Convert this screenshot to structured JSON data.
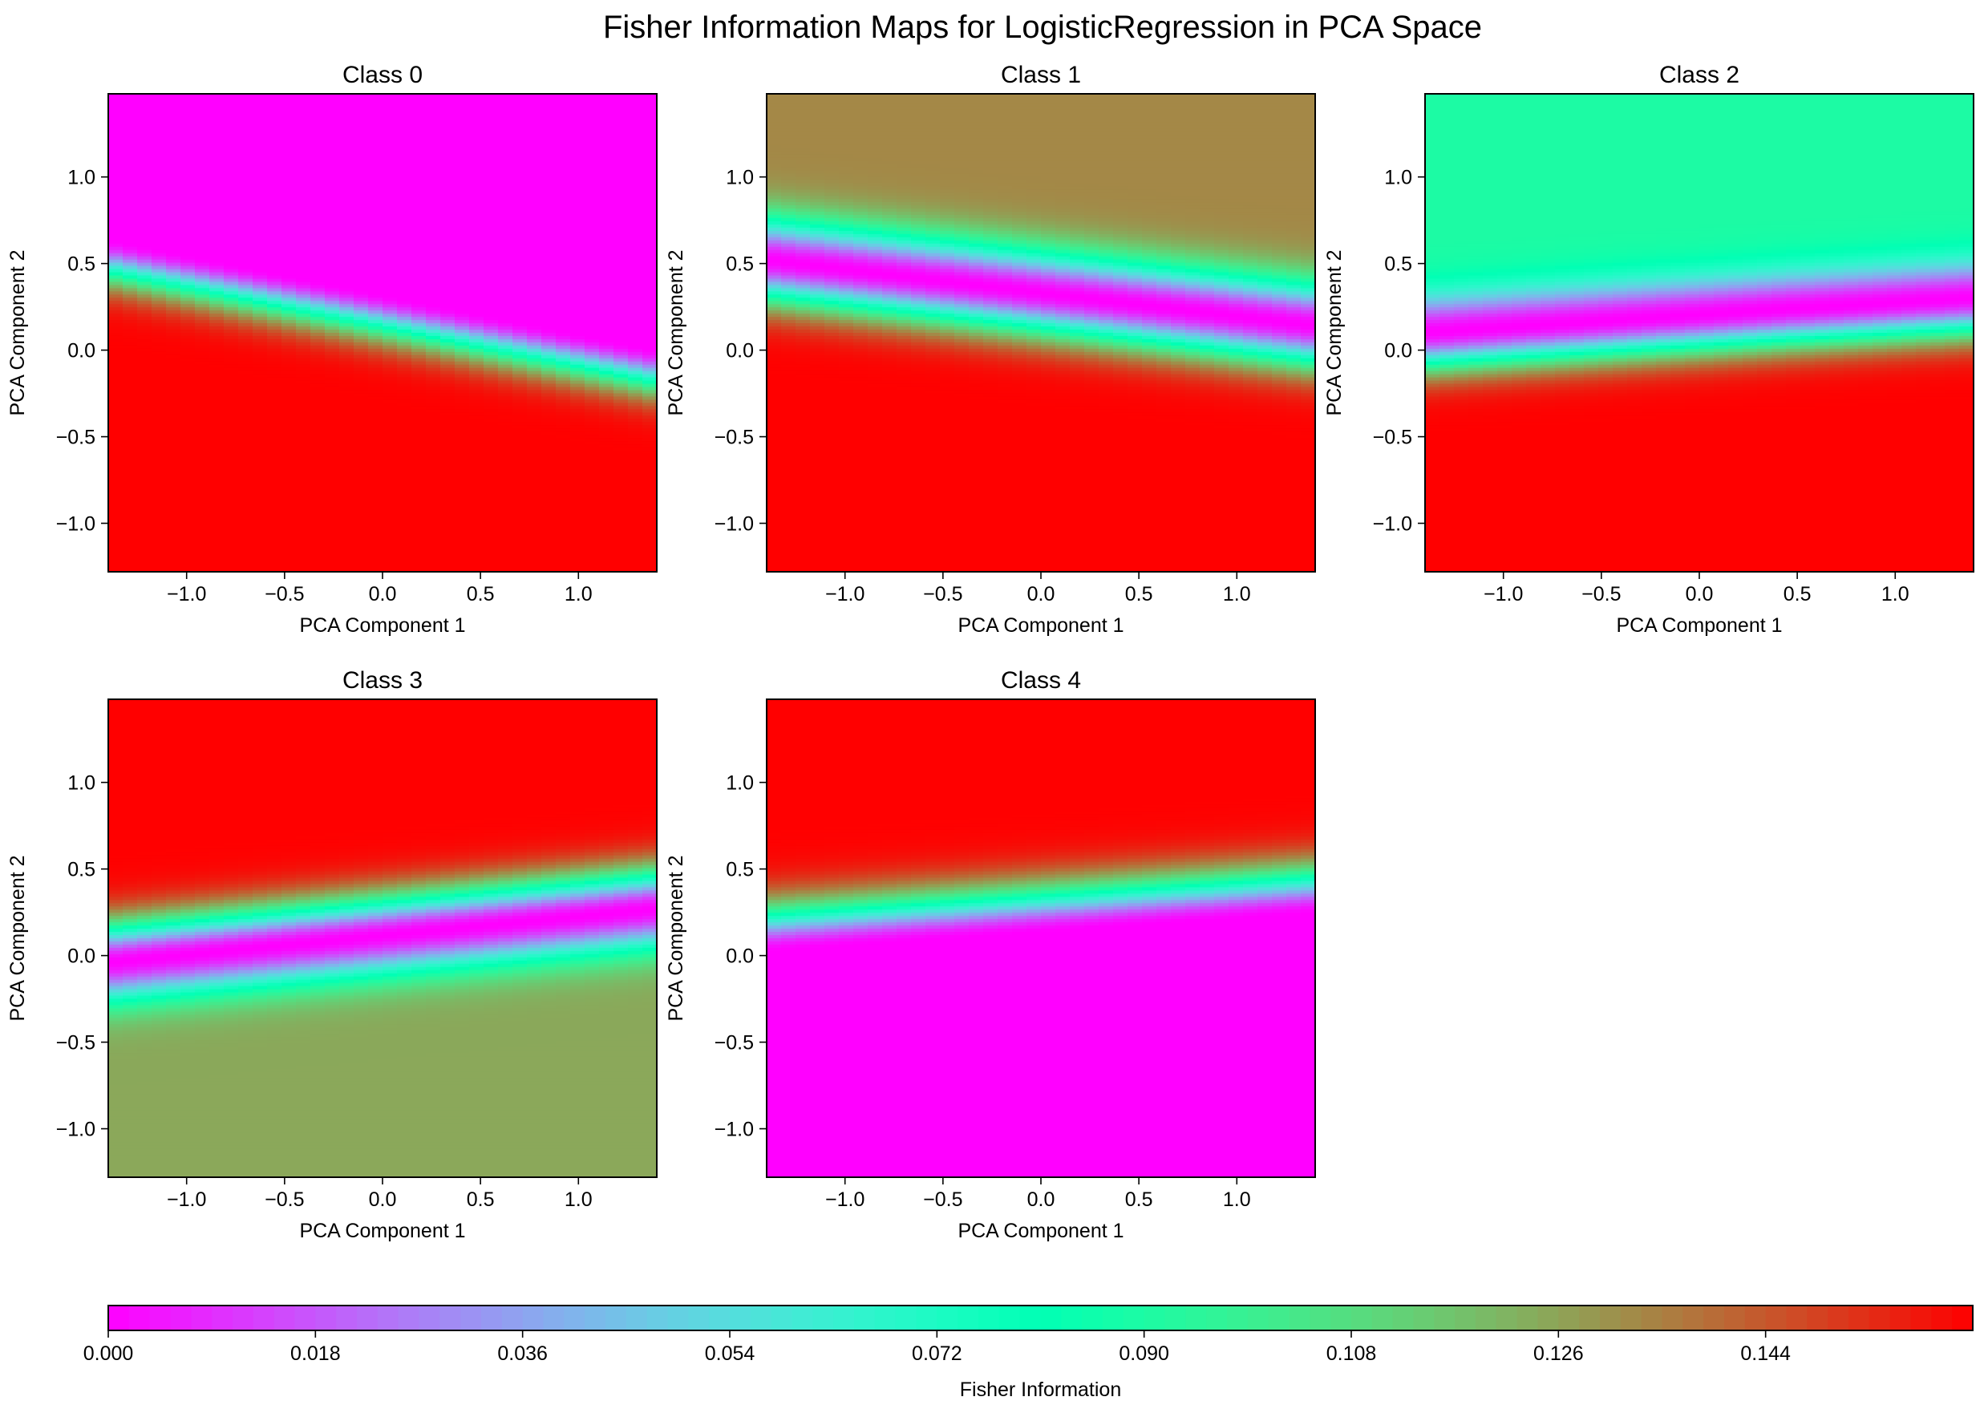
{
  "figure": {
    "title": "Fisher Information Maps for LogisticRegression in PCA Space"
  },
  "colors": {
    "colormap": "rainbow",
    "low": "#8000ff",
    "high": "#ff0000",
    "frame": "#000000"
  },
  "chart_data": [
    {
      "type": "heatmap",
      "title": "Class 0",
      "xlabel": "PCA Component 1",
      "ylabel": "PCA Component 2",
      "xlim": [
        -1.4,
        1.4
      ],
      "ylim": [
        -1.28,
        1.48
      ],
      "xticks": [
        -1.0,
        -0.5,
        0.0,
        0.5,
        1.0
      ],
      "xtick_labels": [
        "−1.0",
        "−0.5",
        "0.0",
        "0.5",
        "1.0"
      ],
      "yticks": [
        -1.0,
        -0.5,
        0.0,
        0.5,
        1.0
      ],
      "ytick_labels": [
        "−1.0",
        "−0.5",
        "0.0",
        "0.5",
        "1.0"
      ],
      "value_range": [
        0.0,
        0.162
      ],
      "pattern": {
        "boundary_x": [
          -1.4,
          1.4
        ],
        "boundary_y": [
          0.64,
          0.0
        ],
        "width": 0.16,
        "above": 0.0,
        "below": 0.162
      }
    },
    {
      "type": "heatmap",
      "title": "Class 1",
      "xlabel": "PCA Component 1",
      "ylabel": "PCA Component 2",
      "xlim": [
        -1.4,
        1.4
      ],
      "ylim": [
        -1.28,
        1.48
      ],
      "xticks": [
        -1.0,
        -0.5,
        0.0,
        0.5,
        1.0
      ],
      "xtick_labels": [
        "−1.0",
        "−0.5",
        "0.0",
        "0.5",
        "1.0"
      ],
      "yticks": [
        -1.0,
        -0.5,
        0.0,
        0.5,
        1.0
      ],
      "ytick_labels": [
        "−1.0",
        "−0.5",
        "0.0",
        "0.5",
        "1.0"
      ],
      "value_range": [
        0.0,
        0.162
      ],
      "pattern": {
        "boundary_x": [
          -1.4,
          1.4
        ],
        "boundary_y": [
          0.52,
          0.14
        ],
        "width": 0.17,
        "above": 0.133,
        "below": 0.162
      }
    },
    {
      "type": "heatmap",
      "title": "Class 2",
      "xlabel": "PCA Component 1",
      "ylabel": "PCA Component 2",
      "xlim": [
        -1.4,
        1.4
      ],
      "ylim": [
        -1.28,
        1.48
      ],
      "xticks": [
        -1.0,
        -0.5,
        0.0,
        0.5,
        1.0
      ],
      "xtick_labels": [
        "−1.0",
        "−0.5",
        "0.0",
        "0.5",
        "1.0"
      ],
      "yticks": [
        -1.0,
        -0.5,
        0.0,
        0.5,
        1.0
      ],
      "ytick_labels": [
        "−1.0",
        "−0.5",
        "0.0",
        "0.5",
        "1.0"
      ],
      "value_range": [
        0.0,
        0.162
      ],
      "pattern": {
        "boundary_x": [
          -1.4,
          0.5,
          1.4
        ],
        "boundary_y": [
          0.1,
          0.24,
          0.3
        ],
        "width": 0.15,
        "above": 0.09,
        "below": 0.162
      }
    },
    {
      "type": "heatmap",
      "title": "Class 3",
      "xlabel": "PCA Component 1",
      "ylabel": "PCA Component 2",
      "xlim": [
        -1.4,
        1.4
      ],
      "ylim": [
        -1.28,
        1.48
      ],
      "xticks": [
        -1.0,
        -0.5,
        0.0,
        0.5,
        1.0
      ],
      "xtick_labels": [
        "−1.0",
        "−0.5",
        "0.0",
        "0.5",
        "1.0"
      ],
      "yticks": [
        -1.0,
        -0.5,
        0.0,
        0.5,
        1.0
      ],
      "ytick_labels": [
        "−1.0",
        "−0.5",
        "0.0",
        "0.5",
        "1.0"
      ],
      "value_range": [
        0.0,
        0.162
      ],
      "pattern": {
        "boundary_x": [
          -1.4,
          1.4
        ],
        "boundary_y": [
          -0.04,
          0.27
        ],
        "width": 0.16,
        "above": 0.162,
        "below": 0.125
      }
    },
    {
      "type": "heatmap",
      "title": "Class 4",
      "xlabel": "PCA Component 1",
      "ylabel": "PCA Component 2",
      "xlim": [
        -1.4,
        1.4
      ],
      "ylim": [
        -1.28,
        1.48
      ],
      "xticks": [
        -1.0,
        -0.5,
        0.0,
        0.5,
        1.0
      ],
      "xtick_labels": [
        "−1.0",
        "−0.5",
        "0.0",
        "0.5",
        "1.0"
      ],
      "yticks": [
        -1.0,
        -0.5,
        0.0,
        0.5,
        1.0
      ],
      "ytick_labels": [
        "−1.0",
        "−0.5",
        "0.0",
        "0.5",
        "1.0"
      ],
      "value_range": [
        0.0,
        0.162
      ],
      "pattern": {
        "boundary_x": [
          -1.4,
          1.4
        ],
        "boundary_y": [
          0.02,
          0.24
        ],
        "width": 0.18,
        "above": 0.162,
        "below": 0.0
      }
    }
  ],
  "colorbar": {
    "label": "Fisher Information",
    "min": 0.0,
    "max": 0.162,
    "ticks": [
      0.0,
      0.018,
      0.036,
      0.054,
      0.072,
      0.09,
      0.108,
      0.126,
      0.144
    ],
    "tick_labels": [
      "0.000",
      "0.018",
      "0.036",
      "0.054",
      "0.072",
      "0.090",
      "0.108",
      "0.126",
      "0.144"
    ]
  }
}
